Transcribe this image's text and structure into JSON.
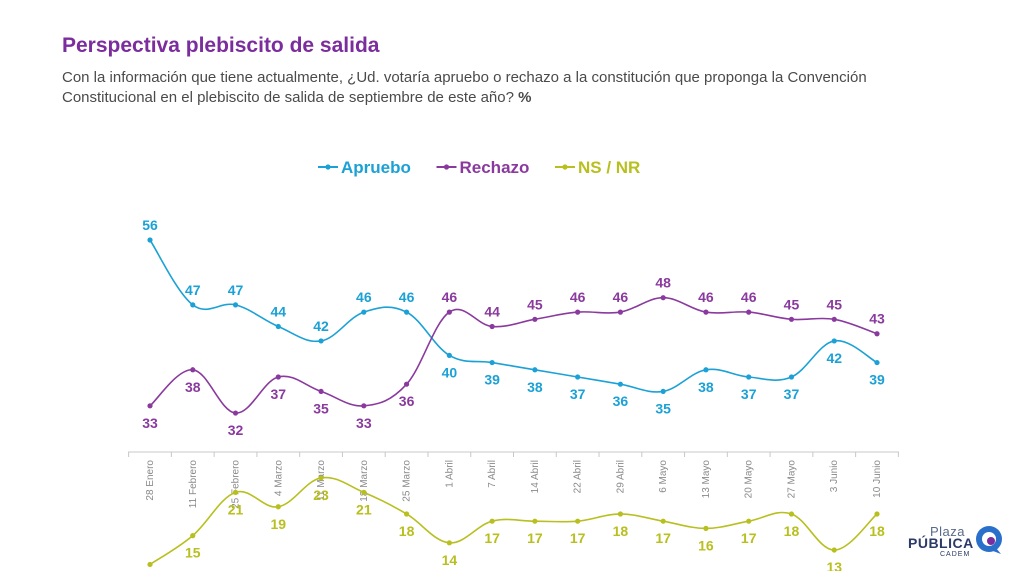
{
  "header": {
    "title": "Perspectiva plebiscito de salida",
    "subtitle": "Con la información que tiene actualmente, ¿Ud. votaría apruebo o rechazo a la constitución que proponga la Convención Constitucional en el plebiscito de salida de septiembre de este año?",
    "subtitle_unit": "%"
  },
  "logo": {
    "line1": "Plaza",
    "line2": "PÚBLICA",
    "line3": "CADEM"
  },
  "chart_data": {
    "type": "line",
    "x": [
      "28 Enero",
      "11 Febrero",
      "25 Febrero",
      "4 Marzo",
      "11 Marzo",
      "18 Marzo",
      "25 Marzo",
      "1 Abril",
      "7 Abril",
      "14 Abril",
      "22 Abril",
      "29 Abril",
      "6 Mayo",
      "13 Mayo",
      "20 Mayo",
      "27 Mayo",
      "3 Junio",
      "10 Junio"
    ],
    "series": [
      {
        "name": "Apruebo",
        "color": "#1ba1d6",
        "values": [
          56,
          47,
          47,
          44,
          42,
          46,
          46,
          40,
          39,
          38,
          37,
          36,
          35,
          38,
          37,
          37,
          42,
          39
        ]
      },
      {
        "name": "Rechazo",
        "color": "#8a3a9e",
        "values": [
          33,
          38,
          32,
          37,
          35,
          33,
          36,
          46,
          44,
          45,
          46,
          46,
          48,
          46,
          46,
          45,
          45,
          43
        ]
      },
      {
        "name": "NS / NR",
        "color": "#b8bf1e",
        "values": [
          11,
          15,
          21,
          19,
          23,
          21,
          18,
          14,
          17,
          17,
          17,
          18,
          17,
          16,
          17,
          18,
          13,
          18
        ]
      }
    ],
    "legend_position": "top",
    "data_labels": true,
    "grid": false
  }
}
